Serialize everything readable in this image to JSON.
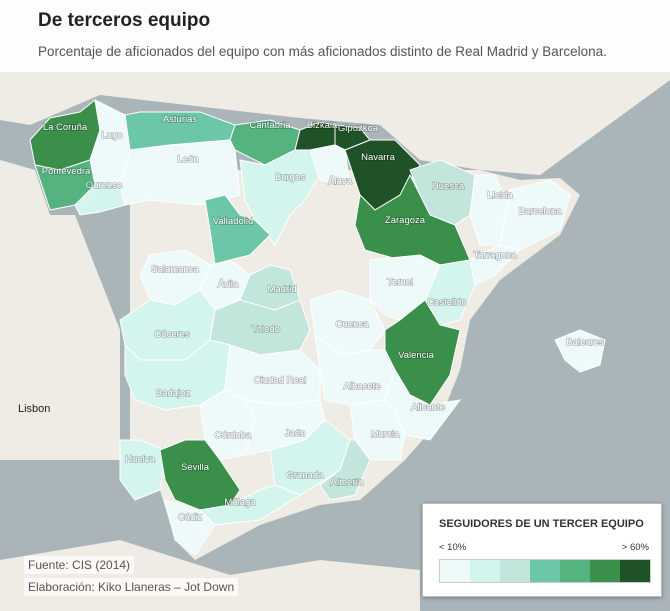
{
  "header": {
    "title": "De terceros equipo",
    "subtitle": "Porcentaje de aficionados del equipo con más aficionados distinto de Real Madrid y Barcelona."
  },
  "provinces": [
    {
      "name": "La Coruña",
      "color": "#3a8f4b"
    },
    {
      "name": "Lugo",
      "color": "#eef9fa"
    },
    {
      "name": "Asturias",
      "color": "#6bc7a7"
    },
    {
      "name": "Cantabria",
      "color": "#55b380"
    },
    {
      "name": "Bizkaia",
      "color": "#1f5226"
    },
    {
      "name": "Gipuzkoa",
      "color": "#1f5226"
    },
    {
      "name": "Navarra",
      "color": "#1f5226"
    },
    {
      "name": "Pontevedra",
      "color": "#55b380"
    },
    {
      "name": "Ourense",
      "color": "#d4f4ee"
    },
    {
      "name": "León",
      "color": "#eef9fa"
    },
    {
      "name": "Burgos",
      "color": "#d4f4ee"
    },
    {
      "name": "Álava",
      "color": "#eef9fa"
    },
    {
      "name": "Huesca",
      "color": "#c2e6dc"
    },
    {
      "name": "Lleida",
      "color": "#eef9fa"
    },
    {
      "name": "Barcelona",
      "color": "#eef9fa"
    },
    {
      "name": "Zaragoza",
      "color": "#3a8f4b"
    },
    {
      "name": "Valladolid",
      "color": "#6bc7a7"
    },
    {
      "name": "Salamanca",
      "color": "#eef9fa"
    },
    {
      "name": "Ávila",
      "color": "#eef9fa"
    },
    {
      "name": "Madrid",
      "color": "#c2e6dc"
    },
    {
      "name": "Tarragona",
      "color": "#eef9fa"
    },
    {
      "name": "Castellón",
      "color": "#d4f4ee"
    },
    {
      "name": "Cuenca",
      "color": "#eef9fa"
    },
    {
      "name": "Teruel",
      "color": "#eef9fa"
    },
    {
      "name": "Cáceres",
      "color": "#d4f4ee"
    },
    {
      "name": "Toledo",
      "color": "#c2e6dc"
    },
    {
      "name": "Valencia",
      "color": "#3a8f4b"
    },
    {
      "name": "Badajoz",
      "color": "#d4f4ee"
    },
    {
      "name": "Ciudad Real",
      "color": "#eef9fa"
    },
    {
      "name": "Albacete",
      "color": "#eef9fa"
    },
    {
      "name": "Alicante",
      "color": "#eef9fa"
    },
    {
      "name": "Murcia",
      "color": "#eef9fa"
    },
    {
      "name": "Córdoba",
      "color": "#eef9fa"
    },
    {
      "name": "Jaén",
      "color": "#eef9fa"
    },
    {
      "name": "Granada",
      "color": "#d4f4ee"
    },
    {
      "name": "Almería",
      "color": "#c2e6dc"
    },
    {
      "name": "Huelva",
      "color": "#d4f4ee"
    },
    {
      "name": "Sevilla",
      "color": "#3a8f4b"
    },
    {
      "name": "Cádiz",
      "color": "#eef9fa"
    },
    {
      "name": "Málaga",
      "color": "#d4f4ee"
    },
    {
      "name": "Baleares",
      "color": "#eef9fa"
    }
  ],
  "map_labels": {
    "lisbon": "Lisbon"
  },
  "legend": {
    "title": "SEGUIDORES DE UN TERCER EQUIPO",
    "min_label": "< 10%",
    "max_label": "> 60%",
    "colors": [
      "#eef9fa",
      "#d4f4ee",
      "#c2e6dc",
      "#6bc7a7",
      "#55b380",
      "#3a8f4b",
      "#1f5226"
    ]
  },
  "footer": {
    "source": "Fuente: CIS (2014)",
    "credit": "Elaboración: Kiko Llaneras – Jot Down"
  }
}
